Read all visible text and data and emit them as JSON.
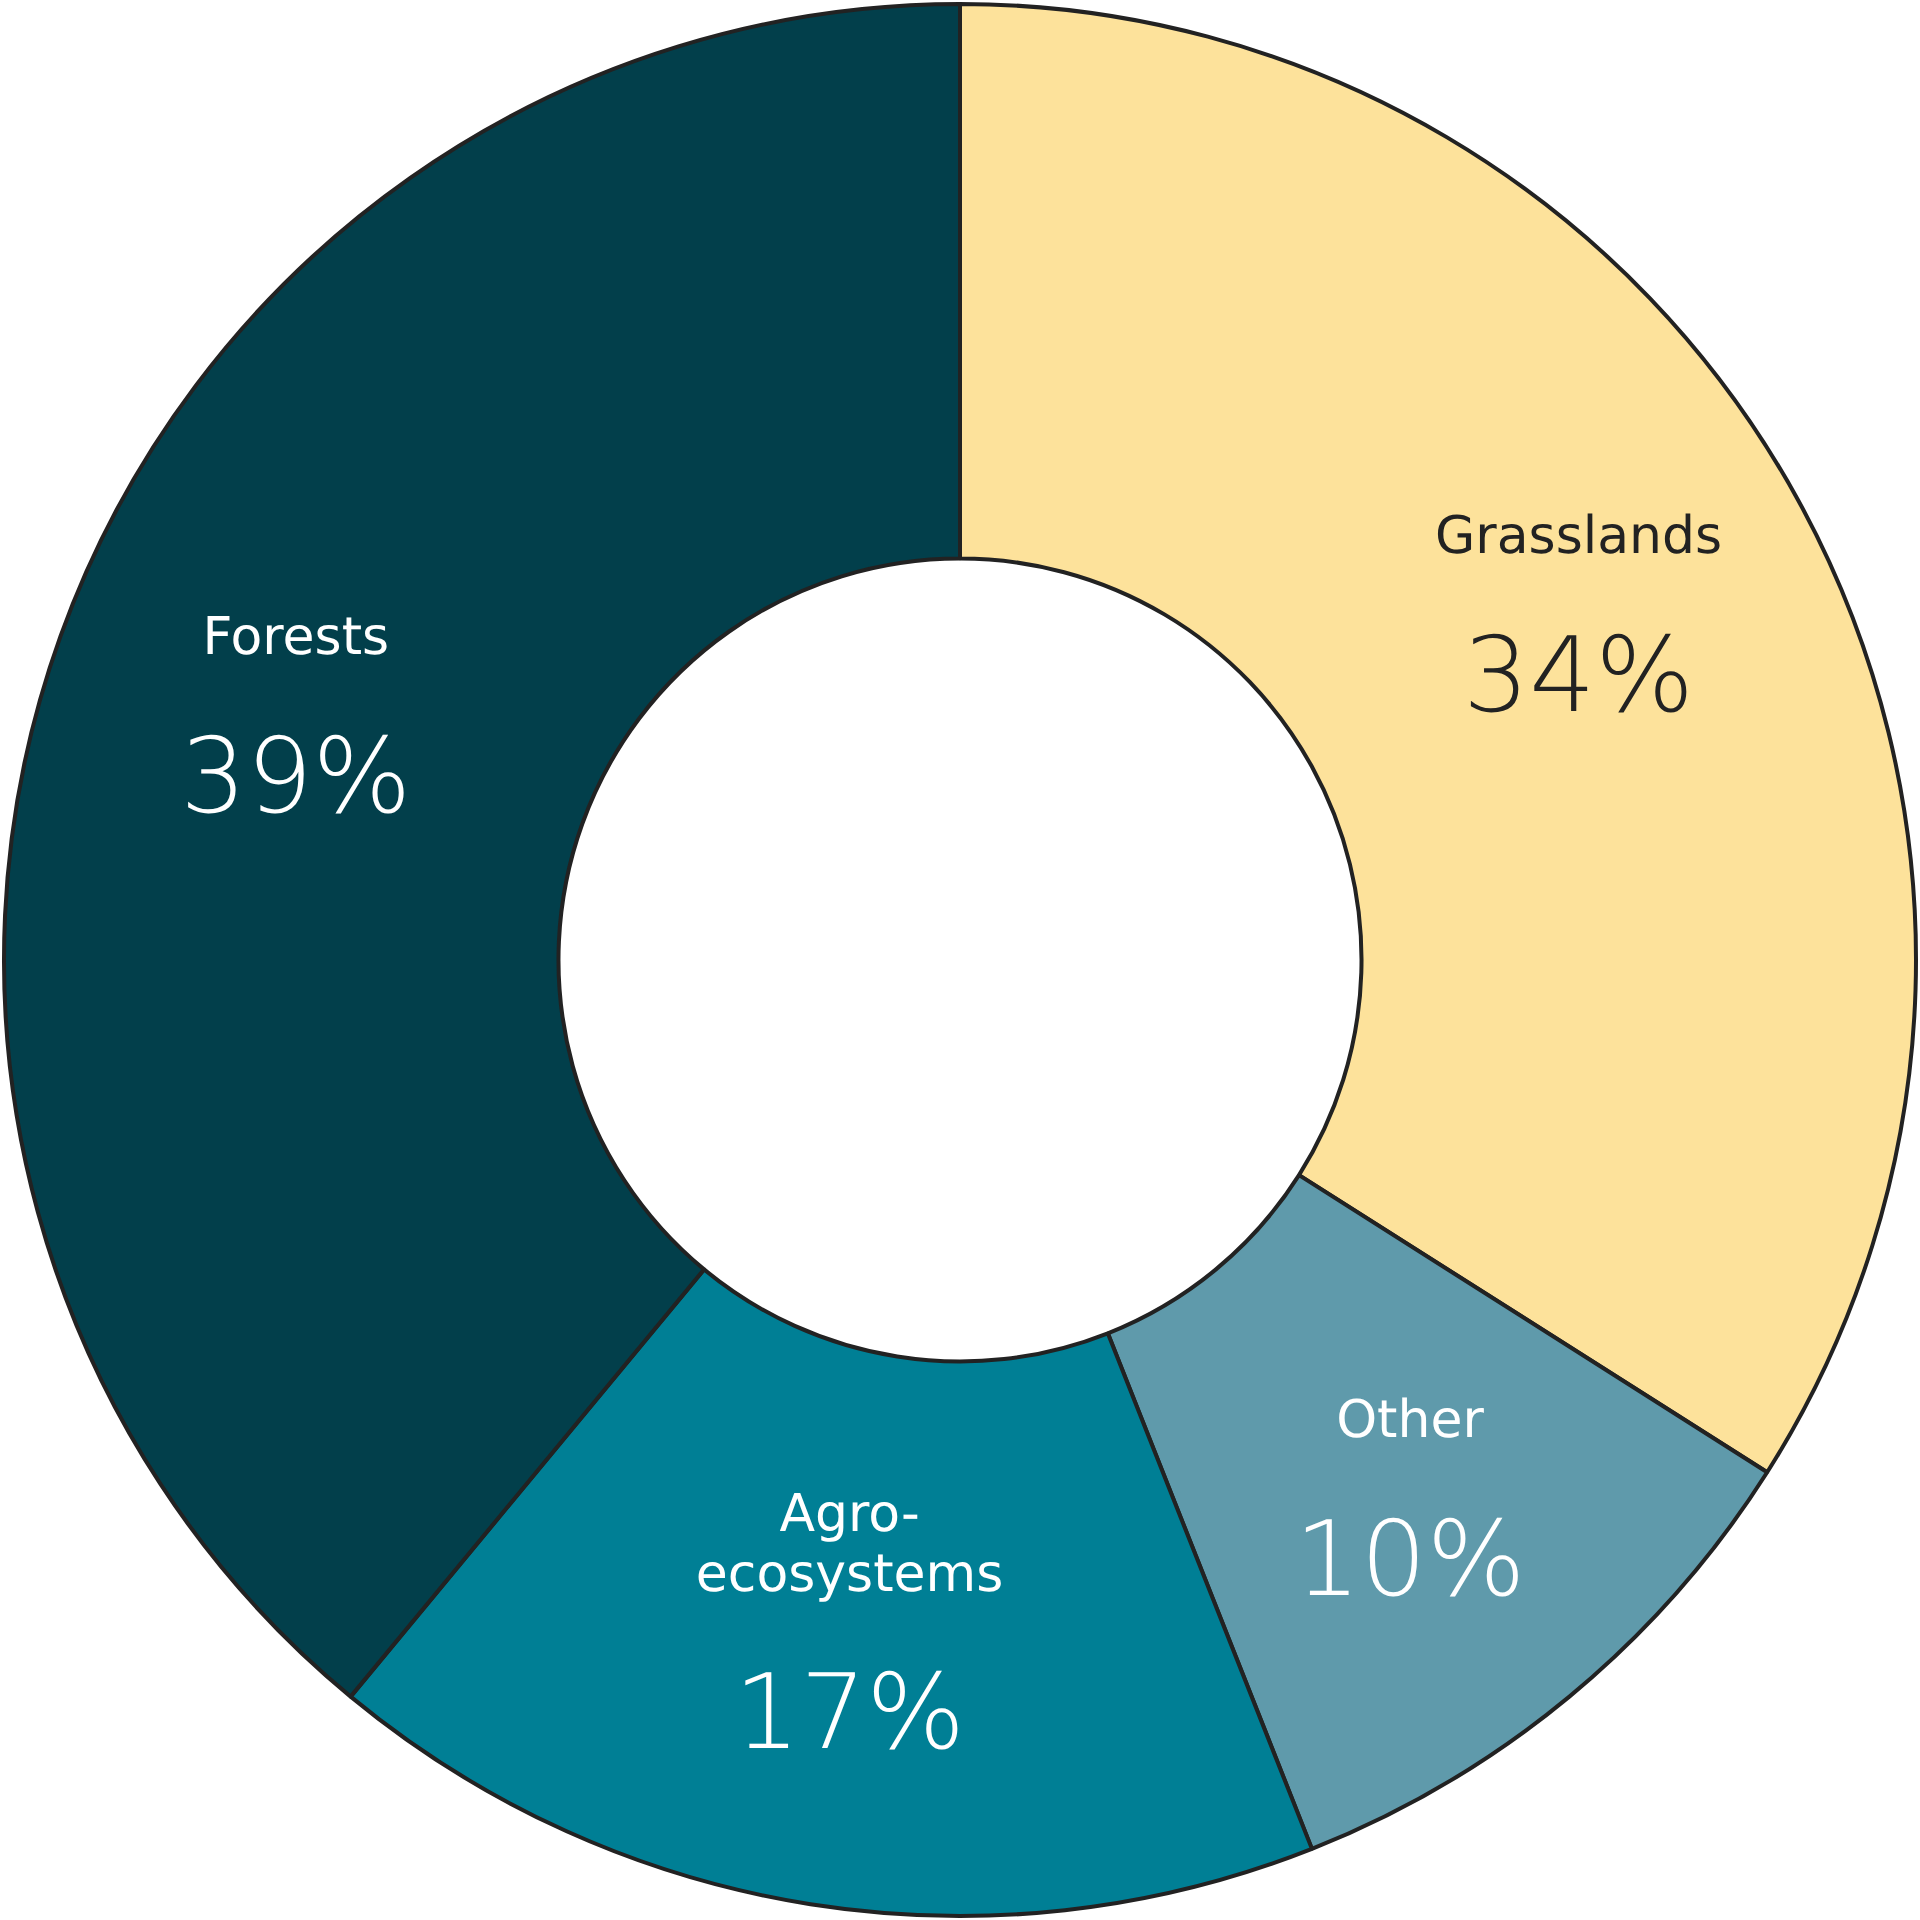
{
  "chart_data": {
    "type": "donut",
    "categories": [
      "Grasslands",
      "Other",
      "Agro-ecosystems",
      "Forests"
    ],
    "values": [
      34,
      10,
      17,
      39
    ],
    "colors": [
      "#fde29b",
      "#5f9aab",
      "#007f95",
      "#023f4b"
    ],
    "value_labels": [
      "34%",
      "10%",
      "17%",
      "39%"
    ],
    "legend": false
  }
}
